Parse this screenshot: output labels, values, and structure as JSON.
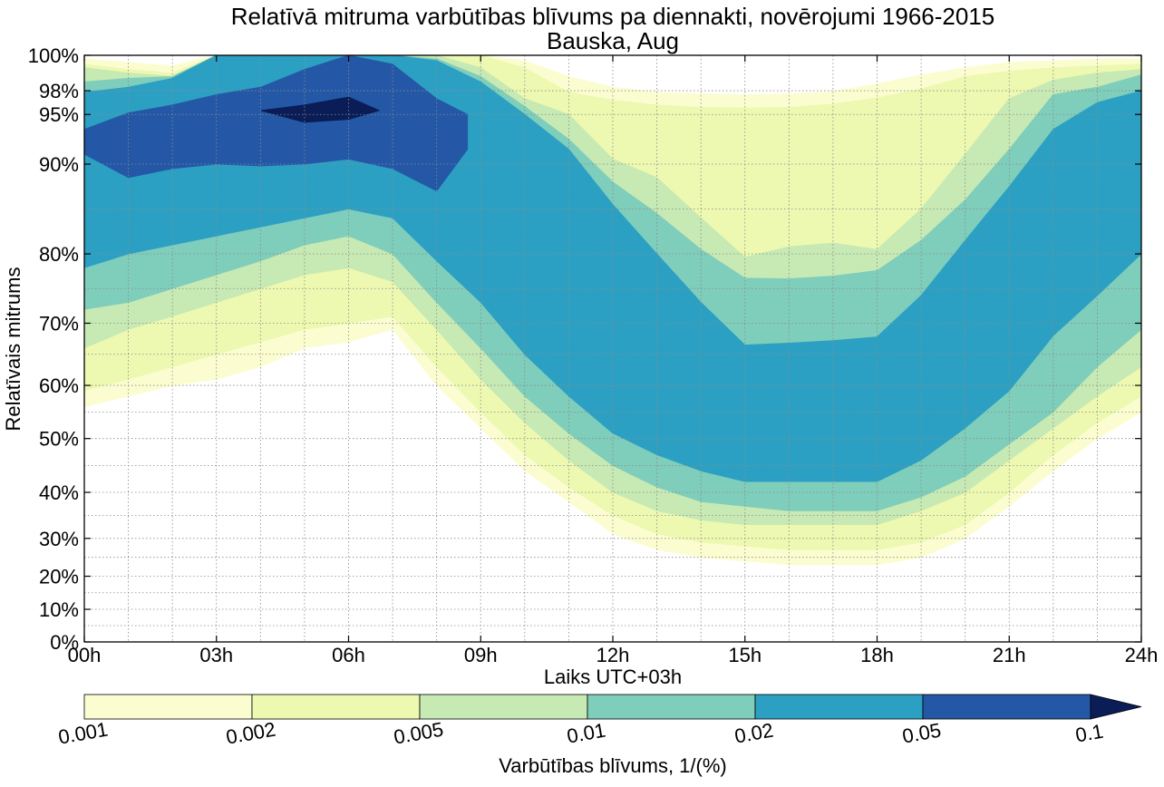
{
  "chart_data": {
    "type": "contourf",
    "title": "Relatīvā mitruma varbūtības blīvums pa diennakti, novērojumi 1966-2015",
    "subtitle": "Bauska, Aug",
    "xlabel": "Laiks UTC+03h",
    "ylabel": "Relatīvais mitrums",
    "xlim": [
      0,
      24
    ],
    "x_ticks": [
      0,
      3,
      6,
      9,
      12,
      15,
      18,
      21,
      24
    ],
    "x_tick_labels": [
      "00h",
      "03h",
      "06h",
      "09h",
      "12h",
      "15h",
      "18h",
      "21h",
      "24h"
    ],
    "y_ticks": [
      0,
      10,
      20,
      30,
      40,
      50,
      60,
      70,
      80,
      90,
      95,
      98,
      100
    ],
    "y_tick_labels": [
      "0%",
      "10%",
      "20%",
      "30%",
      "40%",
      "50%",
      "60%",
      "70%",
      "80%",
      "90%",
      "95%",
      "98%",
      "100%"
    ],
    "colorbar": {
      "label": "Varbūtības blīvums, 1/(%)",
      "levels": [
        0.001,
        0.002,
        0.005,
        0.01,
        0.02,
        0.05,
        0.1
      ],
      "level_labels": [
        "0.001",
        "0.002",
        "0.005",
        "0.01",
        "0.02",
        "0.05",
        "0.1"
      ],
      "colors": [
        "#fbfdd0",
        "#edf8b1",
        "#c7e9b4",
        "#7fcdbb",
        "#2ca0c3",
        "#2458a6",
        "#0b1d57"
      ],
      "extend": "max"
    },
    "bands": [
      {
        "level": 0.001,
        "hours": [
          0,
          1,
          2,
          3,
          4,
          5,
          6,
          7,
          8,
          9,
          10,
          11,
          12,
          13,
          14,
          15,
          16,
          17,
          18,
          19,
          20,
          21,
          22,
          23,
          24
        ],
        "lower": [
          56,
          58,
          60,
          61,
          63,
          66,
          67,
          69,
          60,
          52,
          44,
          38,
          31,
          27,
          25,
          24,
          23,
          23,
          23,
          25,
          30,
          37,
          44,
          50,
          55
        ],
        "upper": [
          99.8,
          99.6,
          99.4,
          100,
          100,
          100,
          100,
          100,
          100,
          100,
          99.7,
          98.8,
          98.2,
          97.8,
          97.6,
          97.5,
          97.6,
          97.9,
          98.4,
          98.9,
          99.3,
          99.6,
          99.7,
          99.8,
          99.8
        ]
      },
      {
        "level": 0.002,
        "hours": [
          0,
          1,
          2,
          3,
          4,
          5,
          6,
          7,
          8,
          9,
          10,
          11,
          12,
          13,
          14,
          15,
          16,
          17,
          18,
          19,
          20,
          21,
          22,
          23,
          24
        ],
        "lower": [
          59,
          61,
          63,
          65,
          67,
          69,
          70,
          71,
          63,
          55,
          47,
          41,
          35,
          31,
          29,
          28,
          27,
          27,
          27,
          29,
          33,
          40,
          47,
          53,
          58
        ],
        "upper": [
          99.5,
          99.2,
          99,
          100,
          100,
          100,
          100,
          100,
          100,
          100,
          99.3,
          97.8,
          96.8,
          96.2,
          95.9,
          95.8,
          95.9,
          96.3,
          97.1,
          98.1,
          98.8,
          99.1,
          99.3,
          99.4,
          99.5
        ]
      },
      {
        "level": 0.005,
        "hours": [
          0,
          1,
          2,
          3,
          4,
          5,
          6,
          7,
          8,
          9,
          10,
          11,
          12,
          13,
          14,
          15,
          16,
          17,
          18,
          19,
          20,
          21,
          22,
          23,
          24
        ],
        "lower": [
          66,
          69,
          71,
          73,
          75,
          77,
          78,
          76,
          69,
          61,
          53,
          46,
          40,
          36,
          34,
          33,
          33,
          33,
          33,
          36,
          40,
          46,
          52,
          58,
          63
        ],
        "upper": [
          99.3,
          99,
          98.8,
          100,
          100,
          100,
          100,
          100,
          100,
          99.3,
          97,
          95,
          90.5,
          88.5,
          84,
          79.5,
          80.8,
          81.2,
          80.5,
          85,
          91,
          97,
          98.6,
          99,
          99.2
        ]
      },
      {
        "level": 0.01,
        "hours": [
          0,
          1,
          2,
          3,
          4,
          5,
          6,
          7,
          8,
          9,
          10,
          11,
          12,
          13,
          14,
          15,
          16,
          17,
          18,
          19,
          20,
          21,
          22,
          23,
          24
        ],
        "lower": [
          72,
          73,
          75,
          77,
          79,
          81,
          82,
          80,
          73,
          66,
          58,
          51,
          45,
          41,
          38,
          37,
          36,
          36,
          36,
          39,
          43,
          49,
          55,
          63,
          69
        ],
        "upper": [
          98.5,
          98.7,
          98.8,
          100,
          100,
          100,
          100,
          100,
          99.8,
          98.8,
          96,
          92.5,
          88,
          84.5,
          80.5,
          76.5,
          76.4,
          76.8,
          77.6,
          81.5,
          86,
          91.5,
          97.5,
          98.2,
          98.9
        ]
      },
      {
        "level": 0.02,
        "hours": [
          0,
          1,
          2,
          3,
          4,
          5,
          6,
          7,
          8,
          9,
          10,
          11,
          12,
          13,
          14,
          15,
          16,
          17,
          18,
          19,
          20,
          21,
          22,
          23,
          24
        ],
        "lower": [
          78,
          80,
          81,
          82,
          83,
          84,
          85,
          84,
          79,
          73,
          65,
          58,
          51,
          47,
          44,
          42,
          42,
          42,
          42,
          46,
          52,
          59,
          68,
          74,
          80
        ],
        "upper": [
          97.8,
          98.2,
          98.7,
          100,
          100,
          100,
          100,
          100,
          99.7,
          98.5,
          95,
          91.5,
          85.5,
          80,
          73,
          66.5,
          66.8,
          67.2,
          67.8,
          74,
          81.5,
          87.5,
          93.5,
          96.5,
          98
        ]
      },
      {
        "level": 0.05,
        "hours": [
          0,
          1,
          2,
          3,
          4,
          5,
          6,
          7,
          8,
          8.7
        ],
        "lower": [
          91,
          88.5,
          89.5,
          90,
          89.8,
          90,
          90.5,
          89.5,
          87,
          91.5
        ],
        "upper": [
          93.5,
          95.2,
          96.2,
          97.5,
          98.2,
          99.2,
          100,
          99.5,
          97,
          95
        ]
      },
      {
        "level": 0.1,
        "hours": [
          4,
          5,
          6,
          6.7
        ],
        "lower": [
          95.5,
          94.2,
          94.5,
          95.5
        ],
        "upper": [
          95.5,
          96.2,
          97.2,
          95.5
        ]
      }
    ]
  }
}
